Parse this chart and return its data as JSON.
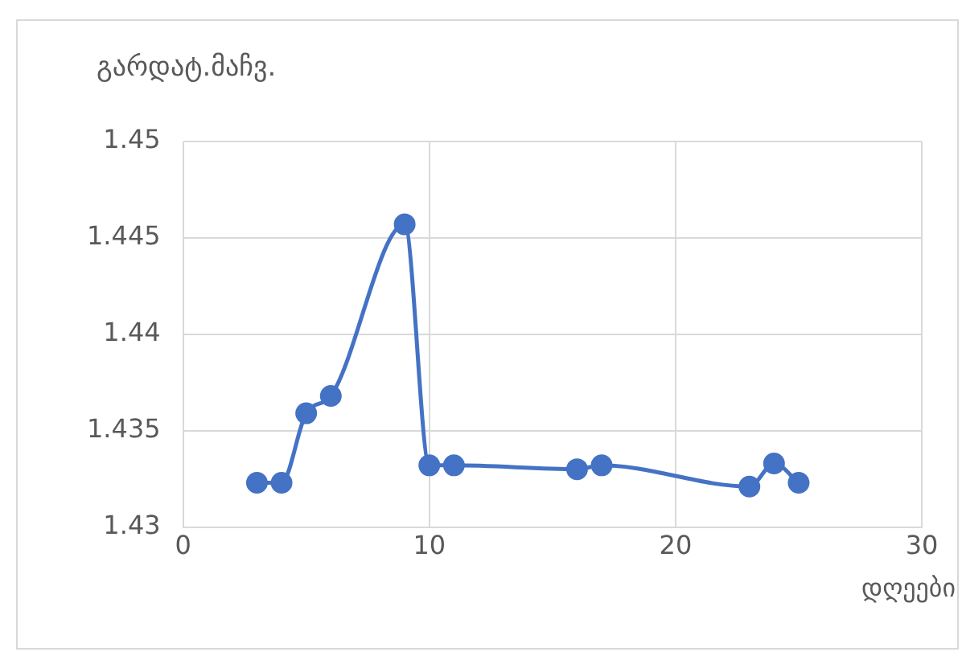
{
  "chart_data": {
    "type": "line",
    "ylabel": "გარდატ.მაჩვ.",
    "xlabel": "დღეები",
    "x": [
      3,
      4,
      5,
      6,
      9,
      10,
      11,
      16,
      17,
      23,
      24,
      25
    ],
    "series": [
      {
        "color": "#4472c4",
        "values": [
          1.4323,
          1.4323,
          1.4359,
          1.4368,
          1.4457,
          1.4332,
          1.4332,
          1.433,
          1.4332,
          1.4321,
          1.4333,
          1.4323
        ]
      }
    ],
    "xlim": [
      0,
      30
    ],
    "xticks": [
      0,
      10,
      20,
      30
    ],
    "ylim": [
      1.43,
      1.45
    ],
    "yticks": [
      1.43,
      1.435,
      1.44,
      1.445,
      1.45
    ],
    "grid": true,
    "marker": "circle",
    "line_style": "solid"
  }
}
